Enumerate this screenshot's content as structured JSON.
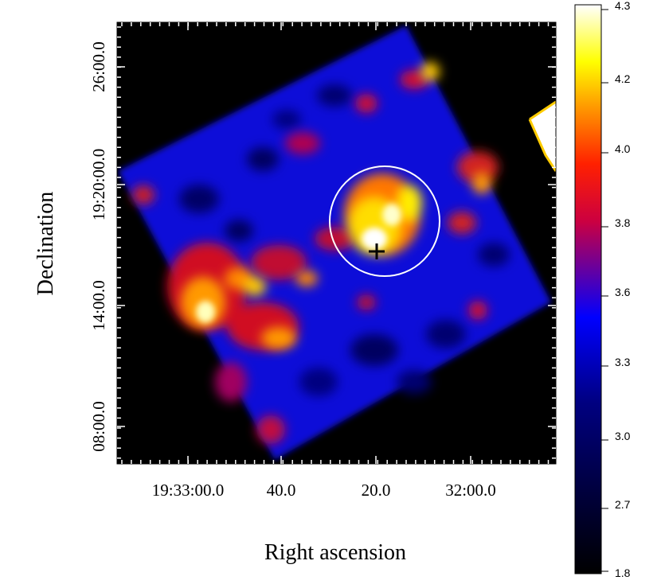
{
  "image": {
    "xlabel": "Right ascension",
    "ylabel": "Declination",
    "xtick_labels": [
      "19:33:00.0",
      "40.0",
      "20.0",
      "32:00.0"
    ],
    "ytick_labels": [
      "08:00.0",
      "14:00.0",
      "19:20:00.0",
      "26:00.0"
    ],
    "ytick_labels_minor": [
      "",
      "",
      "",
      ""
    ],
    "colorbar": {
      "ticks": [
        "1.8",
        "2.7",
        "3.0",
        "3.3",
        "3.6",
        "3.8",
        "4.0",
        "4.2",
        "4.3"
      ],
      "colormap": [
        "#000000",
        "#0000ff",
        "#ff0000",
        "#ffff00",
        "#ffffff"
      ]
    },
    "region_marker": "circle",
    "source_marker": "cross"
  }
}
